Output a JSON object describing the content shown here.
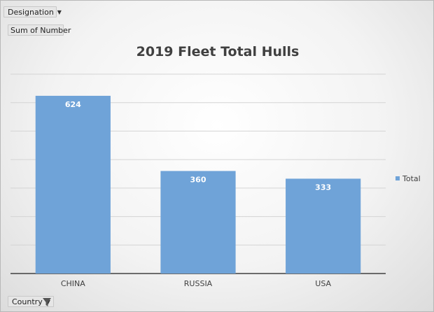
{
  "pivot": {
    "designation_label": "Designation",
    "sum_label": "Sum of Number",
    "country_label": "Country"
  },
  "colors": {
    "bar": "#6fa3d8",
    "grid": "#d4d4d4",
    "axis": "#404040"
  },
  "chart_data": {
    "type": "bar",
    "title": "2019 Fleet Total Hulls",
    "categories": [
      "CHINA",
      "RUSSIA",
      "USA"
    ],
    "series": [
      {
        "name": "Total",
        "values": [
          624,
          360,
          333
        ]
      }
    ],
    "data_labels": [
      "624",
      "360",
      "333"
    ],
    "ylim": [
      0,
      700
    ],
    "y_gridline_step": 100,
    "y_tick_labels_shown": false,
    "grid": true,
    "legend": "right"
  }
}
